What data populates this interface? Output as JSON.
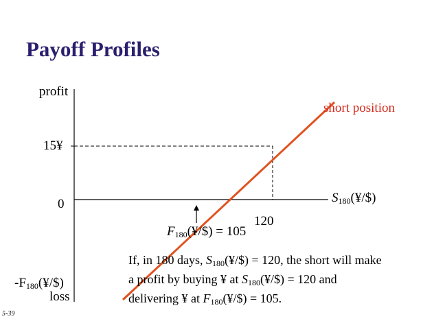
{
  "title": "Payoff Profiles",
  "axes": {
    "y_label": "profit",
    "y_bottom_label": "loss",
    "x_label": "S",
    "x_label_sub": "180",
    "x_label_unit": "(¥/$)",
    "origin_label": "0"
  },
  "series_label": "short position",
  "marks": {
    "y_tick_label": "15¥",
    "x_tick_label": "120",
    "forward_label_prefix": "F",
    "forward_label_sub": "180",
    "forward_label_rest": "(¥/$) = 105",
    "neg_forward_prefix": "-F",
    "neg_forward_sub": "180",
    "neg_forward_rest": "(¥/$)"
  },
  "explanation": {
    "line1_a": "If, in 180 days, ",
    "line1_s": "S",
    "line1_sub": "180",
    "line1_b": "(¥/$) = 120, the short will make",
    "line2_a": "a profit by buying  ¥ at ",
    "line2_s": "S",
    "line2_sub": "180",
    "line2_b": "(¥/$) = 120 and",
    "line3_a": "delivering ¥ at ",
    "line3_f": "F",
    "line3_sub": "180",
    "line3_b": "(¥/$) = 105."
  },
  "slide_number": "5-39",
  "colors": {
    "title": "#2a1e6e",
    "payoff_line": "#e0521f",
    "series_label": "#d42a1e"
  }
}
